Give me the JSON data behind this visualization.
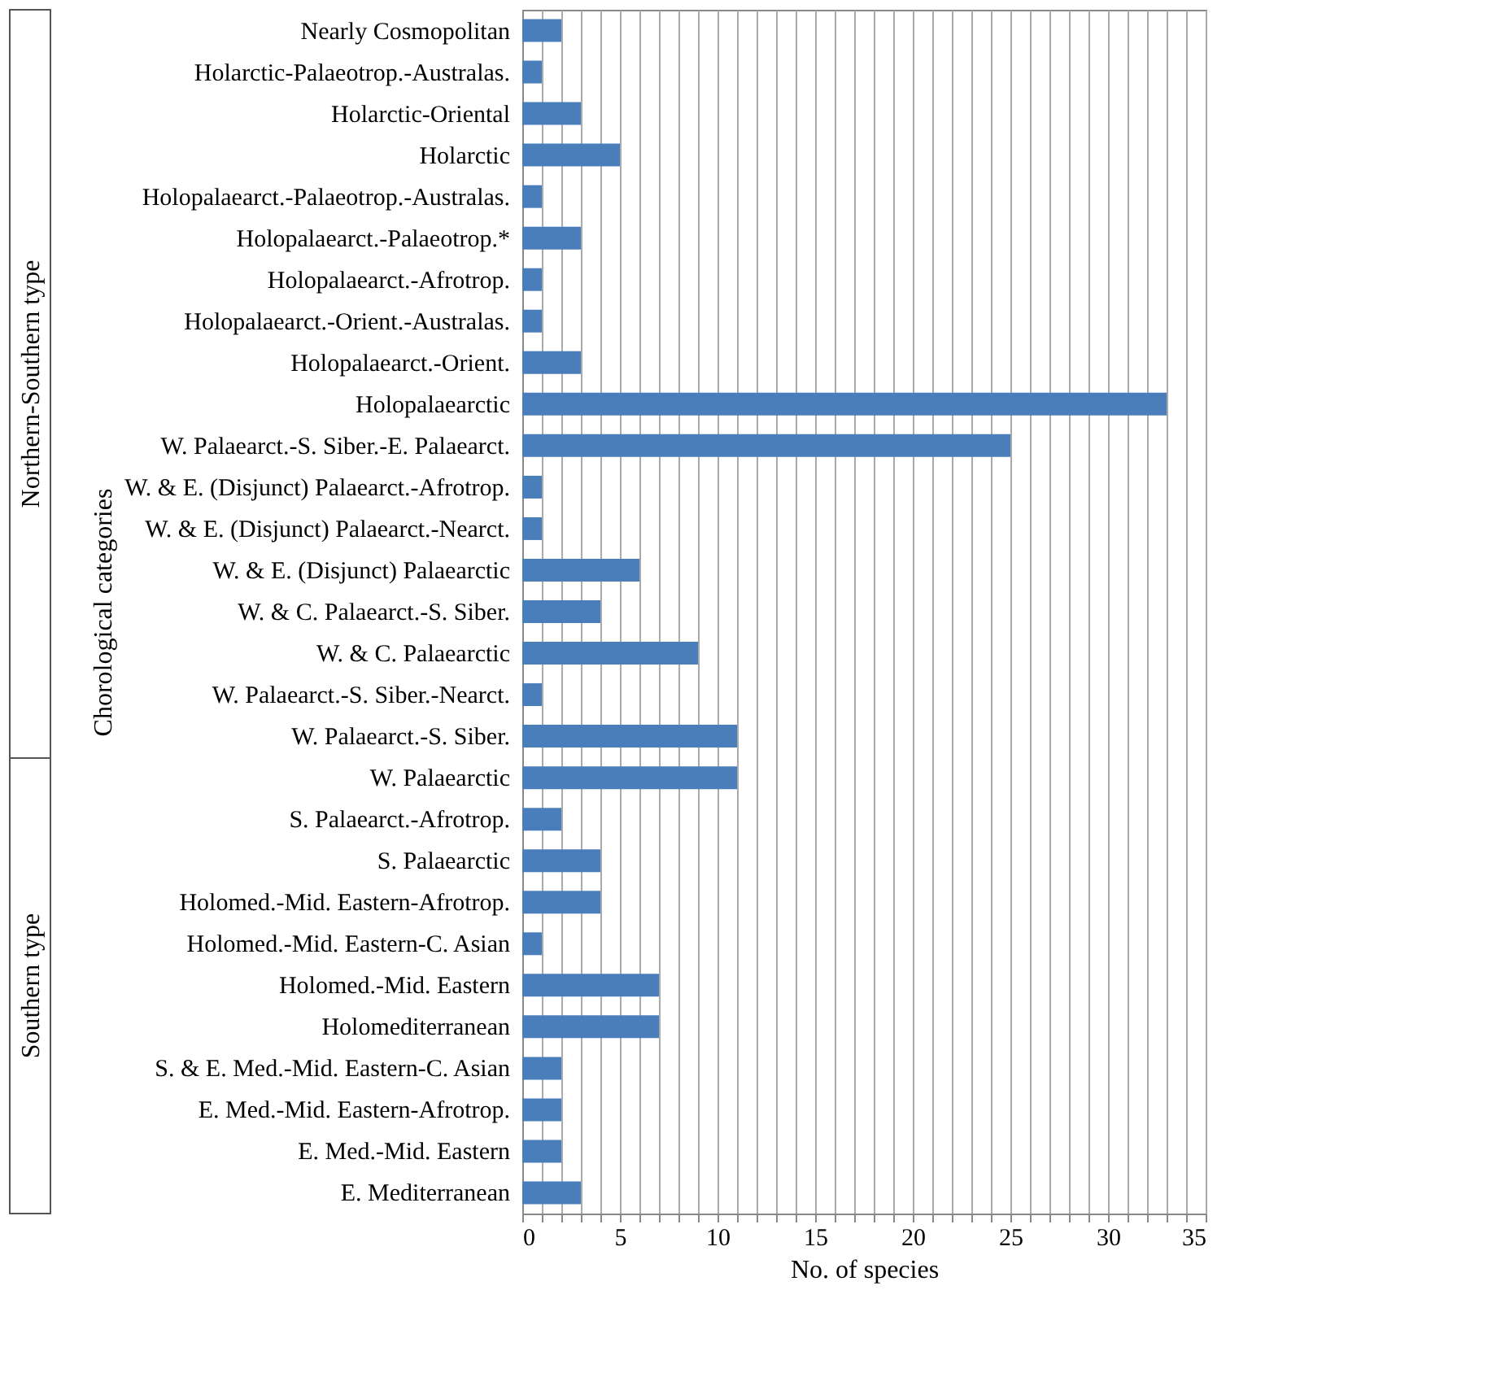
{
  "chart_data": {
    "type": "bar",
    "orientation": "horizontal",
    "xlabel": "No. of species",
    "ylabel": "Chorological categories",
    "categories": [
      "Nearly Cosmopolitan",
      "Holarctic-Palaeotrop.-Australas.",
      "Holarctic-Oriental",
      "Holarctic",
      "Holopalaearct.-Palaeotrop.-Australas.",
      "Holopalaearct.-Palaeotrop.*",
      "Holopalaearct.-Afrotrop.",
      "Holopalaearct.-Orient.-Australas.",
      "Holopalaearct.-Orient.",
      "Holopalaearctic",
      "W. Palaearct.-S. Siber.-E. Palaearct.",
      "W. & E. (Disjunct) Palaearct.-Afrotrop.",
      "W. & E. (Disjunct) Palaearct.-Nearct.",
      "W. & E. (Disjunct) Palaearctic",
      "W. & C. Palaearct.-S. Siber.",
      "W. & C. Palaearctic",
      "W. Palaearct.-S. Siber.-Nearct.",
      "W. Palaearct.-S. Siber.",
      "W. Palaearctic",
      "S. Palaearct.-Afrotrop.",
      "S. Palaearctic",
      "Holomed.-Mid. Eastern-Afrotrop.",
      "Holomed.-Mid. Eastern-C. Asian",
      "Holomed.-Mid. Eastern",
      "Holomediterranean",
      "S. & E. Med.-Mid. Eastern-C. Asian",
      "E. Med.-Mid. Eastern-Afrotrop.",
      "E. Med.-Mid. Eastern",
      "E. Mediterranean"
    ],
    "values": [
      2,
      1,
      3,
      5,
      1,
      3,
      1,
      1,
      3,
      33,
      25,
      1,
      1,
      6,
      4,
      9,
      1,
      11,
      11,
      2,
      4,
      4,
      1,
      7,
      7,
      2,
      2,
      2,
      3
    ],
    "color": "#4a7ebb",
    "xlim": [
      0,
      35
    ],
    "xticks": [
      0,
      {
        "value": 1,
        "label": null
      },
      {
        "value": 2,
        "label": null
      },
      {
        "value": 3,
        "label": null
      },
      {
        "value": 4,
        "label": null
      },
      5,
      {
        "value": 6,
        "label": null
      },
      {
        "value": 7,
        "label": null
      },
      {
        "value": 8,
        "label": null
      },
      {
        "value": 9,
        "label": null
      },
      10,
      {
        "value": 11,
        "label": null
      },
      {
        "value": 12,
        "label": null
      },
      {
        "value": 13,
        "label": null
      },
      {
        "value": 14,
        "label": null
      },
      15,
      {
        "value": 16,
        "label": null
      },
      {
        "value": 17,
        "label": null
      },
      {
        "value": 18,
        "label": null
      },
      {
        "value": 19,
        "label": null
      },
      20,
      {
        "value": 21,
        "label": null
      },
      {
        "value": 22,
        "label": null
      },
      {
        "value": 23,
        "label": null
      },
      {
        "value": 24,
        "label": null
      },
      25,
      {
        "value": 26,
        "label": null
      },
      {
        "value": 27,
        "label": null
      },
      {
        "value": 28,
        "label": null
      },
      {
        "value": 29,
        "label": null
      },
      30,
      {
        "value": 31,
        "label": null
      },
      {
        "value": 32,
        "label": null
      },
      {
        "value": 33,
        "label": null
      },
      {
        "value": 34,
        "label": null
      },
      35
    ],
    "grid": "x",
    "annotations": [
      "Northern-Southern type",
      "Southern type"
    ]
  }
}
